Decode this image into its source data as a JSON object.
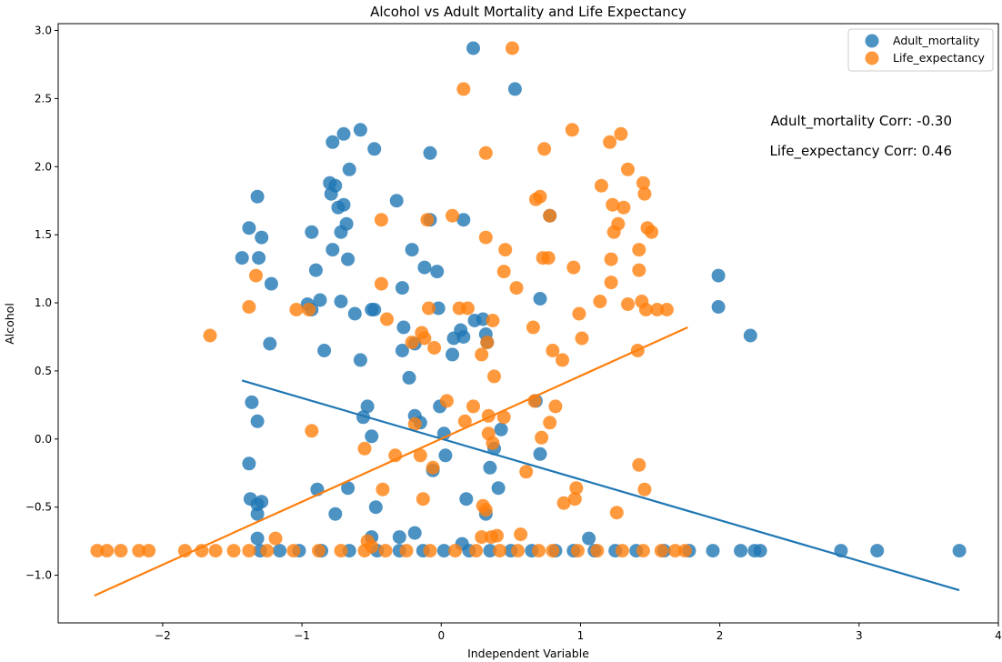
{
  "chart_data": {
    "type": "scatter",
    "title": "Alcohol vs Adult Mortality and Life Expectancy",
    "xlabel": "Independent Variable",
    "ylabel": "Alcohol",
    "xlim": [
      -2.75,
      4.0
    ],
    "ylim": [
      -1.35,
      3.05
    ],
    "xticks": [
      -2,
      -1,
      0,
      1,
      2,
      3,
      4
    ],
    "xtick_labels": [
      "−2",
      "−1",
      "0",
      "1",
      "2",
      "3",
      "4"
    ],
    "yticks": [
      -1.0,
      -0.5,
      0.0,
      0.5,
      1.0,
      1.5,
      2.0,
      2.5,
      3.0
    ],
    "ytick_labels": [
      "−1.0",
      "−0.5",
      "0.0",
      "0.5",
      "1.0",
      "1.5",
      "2.0",
      "2.5",
      "3.0"
    ],
    "grid": false,
    "legend_position": "top-right",
    "series": [
      {
        "name": "Adult_mortality",
        "color": "#1f77b4",
        "corr_label": "Adult_mortality Corr: -0.30",
        "fit_line": {
          "x": [
            -1.43,
            3.72
          ],
          "y": [
            0.43,
            -1.11
          ]
        },
        "points": [
          [
            0.23,
            2.87
          ],
          [
            0.53,
            2.57
          ],
          [
            -0.58,
            2.27
          ],
          [
            -0.7,
            2.24
          ],
          [
            -0.78,
            2.18
          ],
          [
            -0.48,
            2.13
          ],
          [
            -0.08,
            2.1
          ],
          [
            -0.66,
            1.98
          ],
          [
            -0.8,
            1.88
          ],
          [
            -0.76,
            1.86
          ],
          [
            -0.79,
            1.8
          ],
          [
            -1.32,
            1.78
          ],
          [
            -0.32,
            1.75
          ],
          [
            -0.7,
            1.72
          ],
          [
            -0.74,
            1.7
          ],
          [
            0.78,
            1.64
          ],
          [
            -0.08,
            1.61
          ],
          [
            0.16,
            1.61
          ],
          [
            -0.68,
            1.58
          ],
          [
            -1.38,
            1.55
          ],
          [
            -0.93,
            1.52
          ],
          [
            -0.72,
            1.52
          ],
          [
            -1.29,
            1.48
          ],
          [
            -0.21,
            1.39
          ],
          [
            -0.78,
            1.39
          ],
          [
            -1.43,
            1.33
          ],
          [
            -1.31,
            1.33
          ],
          [
            -0.67,
            1.32
          ],
          [
            -0.12,
            1.26
          ],
          [
            -0.9,
            1.24
          ],
          [
            -0.03,
            1.23
          ],
          [
            -1.22,
            1.14
          ],
          [
            -0.28,
            1.11
          ],
          [
            0.71,
            1.03
          ],
          [
            -0.87,
            1.02
          ],
          [
            -0.72,
            1.01
          ],
          [
            -0.96,
            0.99
          ],
          [
            -0.93,
            0.95
          ],
          [
            -0.5,
            0.95
          ],
          [
            -0.48,
            0.95
          ],
          [
            -0.02,
            0.96
          ],
          [
            0.24,
            0.87
          ],
          [
            -0.62,
            0.92
          ],
          [
            0.3,
            0.88
          ],
          [
            -0.27,
            0.82
          ],
          [
            0.14,
            0.8
          ],
          [
            0.32,
            0.77
          ],
          [
            0.09,
            0.74
          ],
          [
            0.16,
            0.75
          ],
          [
            0.33,
            0.71
          ],
          [
            -1.23,
            0.7
          ],
          [
            -0.19,
            0.7
          ],
          [
            -0.28,
            0.65
          ],
          [
            -0.84,
            0.65
          ],
          [
            0.08,
            0.62
          ],
          [
            -0.58,
            0.58
          ],
          [
            -0.23,
            0.45
          ],
          [
            -1.36,
            0.27
          ],
          [
            0.68,
            0.28
          ],
          [
            -0.53,
            0.24
          ],
          [
            -0.01,
            0.24
          ],
          [
            -0.19,
            0.17
          ],
          [
            -0.56,
            0.16
          ],
          [
            -0.15,
            0.12
          ],
          [
            -1.32,
            0.13
          ],
          [
            0.02,
            0.04
          ],
          [
            0.43,
            0.07
          ],
          [
            -0.5,
            0.02
          ],
          [
            0.38,
            -0.07
          ],
          [
            0.71,
            -0.11
          ],
          [
            0.03,
            -0.12
          ],
          [
            -1.38,
            -0.18
          ],
          [
            0.35,
            -0.21
          ],
          [
            -0.06,
            -0.23
          ],
          [
            -0.89,
            -0.37
          ],
          [
            -0.67,
            -0.36
          ],
          [
            0.41,
            -0.36
          ],
          [
            -1.37,
            -0.44
          ],
          [
            0.18,
            -0.44
          ],
          [
            -1.29,
            -0.46
          ],
          [
            -1.32,
            -0.48
          ],
          [
            -0.47,
            -0.5
          ],
          [
            -1.32,
            -0.55
          ],
          [
            -0.76,
            -0.55
          ],
          [
            0.32,
            -0.55
          ],
          [
            -0.19,
            -0.69
          ],
          [
            -0.3,
            -0.72
          ],
          [
            -0.5,
            -0.72
          ],
          [
            -1.32,
            -0.73
          ],
          [
            1.06,
            -0.73
          ],
          [
            0.15,
            -0.77
          ],
          [
            -1.3,
            -0.82
          ],
          [
            -1.16,
            -0.82
          ],
          [
            -1.02,
            -0.82
          ],
          [
            -0.86,
            -0.82
          ],
          [
            -0.66,
            -0.82
          ],
          [
            -0.46,
            -0.82
          ],
          [
            -0.3,
            -0.82
          ],
          [
            -0.13,
            -0.82
          ],
          [
            0.02,
            -0.82
          ],
          [
            0.2,
            -0.82
          ],
          [
            0.35,
            -0.82
          ],
          [
            0.5,
            -0.82
          ],
          [
            0.65,
            -0.82
          ],
          [
            0.82,
            -0.82
          ],
          [
            0.95,
            -0.82
          ],
          [
            1.1,
            -0.82
          ],
          [
            1.25,
            -0.82
          ],
          [
            1.4,
            -0.82
          ],
          [
            1.6,
            -0.82
          ],
          [
            1.78,
            -0.82
          ],
          [
            1.95,
            -0.82
          ],
          [
            2.15,
            -0.82
          ],
          [
            2.25,
            -0.82
          ],
          [
            2.29,
            -0.82
          ],
          [
            2.87,
            -0.82
          ],
          [
            3.13,
            -0.82
          ],
          [
            3.72,
            -0.82
          ],
          [
            1.99,
            1.2
          ],
          [
            1.99,
            0.97
          ],
          [
            2.22,
            0.76
          ]
        ]
      },
      {
        "name": "Life_expectancy",
        "color": "#ff7f0e",
        "corr_label": "Life_expectancy Corr: 0.46",
        "fit_line": {
          "x": [
            -2.49,
            1.77
          ],
          "y": [
            -1.15,
            0.82
          ]
        },
        "points": [
          [
            0.51,
            2.87
          ],
          [
            0.16,
            2.57
          ],
          [
            0.94,
            2.27
          ],
          [
            1.29,
            2.24
          ],
          [
            1.21,
            2.18
          ],
          [
            0.74,
            2.13
          ],
          [
            0.32,
            2.1
          ],
          [
            1.34,
            1.98
          ],
          [
            1.45,
            1.88
          ],
          [
            1.15,
            1.86
          ],
          [
            1.46,
            1.8
          ],
          [
            0.71,
            1.78
          ],
          [
            0.68,
            1.76
          ],
          [
            1.23,
            1.72
          ],
          [
            1.31,
            1.7
          ],
          [
            0.78,
            1.64
          ],
          [
            0.08,
            1.64
          ],
          [
            -0.1,
            1.61
          ],
          [
            -0.43,
            1.61
          ],
          [
            1.27,
            1.58
          ],
          [
            1.48,
            1.55
          ],
          [
            1.24,
            1.52
          ],
          [
            1.51,
            1.52
          ],
          [
            0.32,
            1.48
          ],
          [
            0.46,
            1.39
          ],
          [
            1.42,
            1.39
          ],
          [
            0.73,
            1.33
          ],
          [
            0.77,
            1.33
          ],
          [
            1.22,
            1.32
          ],
          [
            0.95,
            1.26
          ],
          [
            1.42,
            1.24
          ],
          [
            0.45,
            1.23
          ],
          [
            -1.33,
            1.2
          ],
          [
            1.22,
            1.15
          ],
          [
            -0.43,
            1.14
          ],
          [
            0.54,
            1.11
          ],
          [
            1.14,
            1.01
          ],
          [
            1.44,
            1.01
          ],
          [
            -1.38,
            0.97
          ],
          [
            1.34,
            0.99
          ],
          [
            -1.04,
            0.95
          ],
          [
            -0.95,
            0.95
          ],
          [
            -0.09,
            0.96
          ],
          [
            0.13,
            0.96
          ],
          [
            0.19,
            0.96
          ],
          [
            1.47,
            0.95
          ],
          [
            1.55,
            0.95
          ],
          [
            1.62,
            0.95
          ],
          [
            0.99,
            0.92
          ],
          [
            -0.39,
            0.88
          ],
          [
            0.37,
            0.87
          ],
          [
            0.66,
            0.82
          ],
          [
            -0.14,
            0.78
          ],
          [
            -0.12,
            0.74
          ],
          [
            1.01,
            0.74
          ],
          [
            -0.21,
            0.71
          ],
          [
            0.33,
            0.71
          ],
          [
            -1.66,
            0.76
          ],
          [
            -0.05,
            0.67
          ],
          [
            0.8,
            0.65
          ],
          [
            1.41,
            0.65
          ],
          [
            0.29,
            0.62
          ],
          [
            0.87,
            0.58
          ],
          [
            0.38,
            0.46
          ],
          [
            0.04,
            0.28
          ],
          [
            0.67,
            0.28
          ],
          [
            0.23,
            0.24
          ],
          [
            0.82,
            0.24
          ],
          [
            0.34,
            0.17
          ],
          [
            0.45,
            0.16
          ],
          [
            0.17,
            0.13
          ],
          [
            -0.19,
            0.11
          ],
          [
            0.78,
            0.12
          ],
          [
            -0.93,
            0.06
          ],
          [
            0.72,
            0.01
          ],
          [
            0.34,
            0.04
          ],
          [
            0.37,
            -0.03
          ],
          [
            -0.55,
            -0.07
          ],
          [
            -0.33,
            -0.12
          ],
          [
            -0.15,
            -0.12
          ],
          [
            -0.06,
            -0.21
          ],
          [
            1.42,
            -0.19
          ],
          [
            0.61,
            -0.24
          ],
          [
            -0.42,
            -0.37
          ],
          [
            0.97,
            -0.36
          ],
          [
            1.46,
            -0.37
          ],
          [
            -0.13,
            -0.44
          ],
          [
            0.96,
            -0.44
          ],
          [
            0.88,
            -0.47
          ],
          [
            0.3,
            -0.49
          ],
          [
            0.32,
            -0.52
          ],
          [
            1.26,
            -0.54
          ],
          [
            0.57,
            -0.7
          ],
          [
            0.29,
            -0.72
          ],
          [
            0.36,
            -0.72
          ],
          [
            0.4,
            -0.71
          ],
          [
            -1.19,
            -0.73
          ],
          [
            -0.53,
            -0.75
          ],
          [
            -0.5,
            -0.79
          ],
          [
            -2.47,
            -0.82
          ],
          [
            -2.4,
            -0.82
          ],
          [
            -2.3,
            -0.82
          ],
          [
            -2.17,
            -0.82
          ],
          [
            -2.1,
            -0.82
          ],
          [
            -1.84,
            -0.82
          ],
          [
            -1.72,
            -0.82
          ],
          [
            -1.62,
            -0.82
          ],
          [
            -1.49,
            -0.82
          ],
          [
            -1.38,
            -0.82
          ],
          [
            -1.25,
            -0.82
          ],
          [
            -1.06,
            -0.82
          ],
          [
            -0.88,
            -0.82
          ],
          [
            -0.72,
            -0.82
          ],
          [
            -0.55,
            -0.82
          ],
          [
            -0.4,
            -0.82
          ],
          [
            -0.25,
            -0.82
          ],
          [
            -0.08,
            -0.82
          ],
          [
            0.1,
            -0.82
          ],
          [
            0.25,
            -0.82
          ],
          [
            0.42,
            -0.82
          ],
          [
            0.55,
            -0.82
          ],
          [
            0.7,
            -0.82
          ],
          [
            0.8,
            -0.82
          ],
          [
            0.98,
            -0.82
          ],
          [
            1.12,
            -0.82
          ],
          [
            1.3,
            -0.82
          ],
          [
            1.45,
            -0.82
          ],
          [
            1.58,
            -0.82
          ],
          [
            1.68,
            -0.82
          ],
          [
            1.75,
            -0.82
          ]
        ]
      }
    ]
  }
}
